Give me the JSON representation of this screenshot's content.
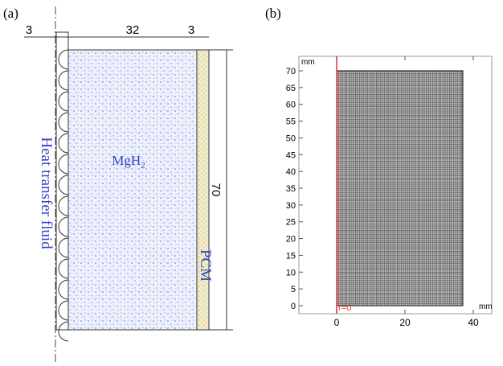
{
  "panel_a": {
    "label": "(a)",
    "dimensions": [
      "3",
      "32",
      "3",
      "70"
    ],
    "hydride": "MgH",
    "hydride_sub": "2",
    "fluid": "Heat transfer fluid",
    "pcm": "PCM"
  },
  "panel_b": {
    "label": "(b)",
    "unit_y": "mm",
    "unit_x": "mm",
    "origin_label": "r=0",
    "yticks": [
      0,
      5,
      10,
      15,
      20,
      25,
      30,
      35,
      40,
      45,
      50,
      55,
      60,
      65,
      70
    ],
    "xticks": [
      0,
      20,
      40
    ]
  }
}
